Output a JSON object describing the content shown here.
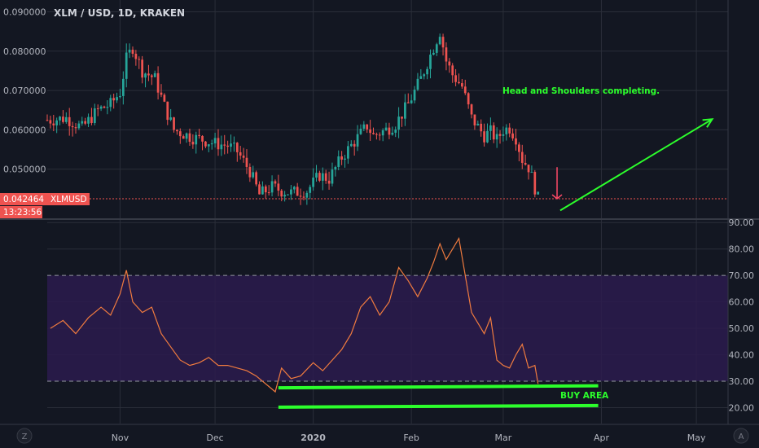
{
  "chart_data": [
    {
      "type": "candlestick",
      "title": "XLM / USD, 1D, KRAKEN",
      "symbol": "XLMUSD",
      "last_price": "0.042464",
      "countdown": "13:23:56",
      "y_ticks": [
        "0.090000",
        "0.080000",
        "0.070000",
        "0.060000",
        "0.050000"
      ],
      "ylim": [
        0.0375,
        0.093
      ],
      "xlim": [
        "2019-10-09",
        "2020-05-11"
      ],
      "annotation": "Head and Shoulders completing.",
      "close_series": {
        "x": [
          "2019-10-10",
          "2019-10-15",
          "2019-10-20",
          "2019-10-25",
          "2019-10-29",
          "2019-11-01",
          "2019-11-03",
          "2019-11-05",
          "2019-11-08",
          "2019-11-12",
          "2019-11-15",
          "2019-11-18",
          "2019-11-21",
          "2019-11-24",
          "2019-11-27",
          "2019-12-01",
          "2019-12-05",
          "2019-12-08",
          "2019-12-12",
          "2019-12-15",
          "2019-12-17",
          "2019-12-19",
          "2019-12-22",
          "2019-12-25",
          "2019-12-30",
          "2020-01-03",
          "2020-01-06",
          "2020-01-10",
          "2020-01-14",
          "2020-01-18",
          "2020-01-20",
          "2020-01-24",
          "2020-01-27",
          "2020-01-31",
          "2020-02-04",
          "2020-02-08",
          "2020-02-10",
          "2020-02-12",
          "2020-02-14",
          "2020-02-17",
          "2020-02-20",
          "2020-02-24",
          "2020-02-26",
          "2020-02-28",
          "2020-03-01",
          "2020-03-03",
          "2020-03-05",
          "2020-03-07",
          "2020-03-09",
          "2020-03-10",
          "2020-03-12"
        ],
        "y": [
          0.0625,
          0.063,
          0.0605,
          0.065,
          0.0665,
          0.0695,
          0.078,
          0.081,
          0.075,
          0.073,
          0.066,
          0.06,
          0.059,
          0.058,
          0.0575,
          0.0565,
          0.056,
          0.0545,
          0.0495,
          0.0435,
          0.0445,
          0.0455,
          0.0445,
          0.044,
          0.0445,
          0.0485,
          0.0475,
          0.053,
          0.057,
          0.061,
          0.0585,
          0.06,
          0.0615,
          0.0665,
          0.073,
          0.081,
          0.085,
          0.0775,
          0.074,
          0.071,
          0.063,
          0.0585,
          0.0595,
          0.0575,
          0.06,
          0.0605,
          0.058,
          0.0525,
          0.0505,
          0.048,
          0.0425
        ]
      },
      "arrows": [
        {
          "type": "down",
          "color": "#ff4a68"
        },
        {
          "type": "up",
          "color": "#2cff2c"
        }
      ]
    },
    {
      "type": "line",
      "indicator": "RSI",
      "y_ticks": [
        "90.00",
        "80.00",
        "70.00",
        "60.00",
        "50.00",
        "40.00",
        "30.00",
        "20.00"
      ],
      "ylim": [
        14,
        91
      ],
      "bands": [
        30,
        70
      ],
      "series": [
        {
          "color": "#f07b3f",
          "x": [
            "2019-10-10",
            "2019-10-14",
            "2019-10-18",
            "2019-10-22",
            "2019-10-26",
            "2019-10-29",
            "2019-11-01",
            "2019-11-03",
            "2019-11-05",
            "2019-11-08",
            "2019-11-11",
            "2019-11-14",
            "2019-11-17",
            "2019-11-20",
            "2019-11-23",
            "2019-11-26",
            "2019-11-29",
            "2019-12-02",
            "2019-12-05",
            "2019-12-08",
            "2019-12-11",
            "2019-12-14",
            "2019-12-16",
            "2019-12-18",
            "2019-12-20",
            "2019-12-22",
            "2019-12-25",
            "2019-12-28",
            "2020-01-01",
            "2020-01-04",
            "2020-01-07",
            "2020-01-10",
            "2020-01-13",
            "2020-01-16",
            "2020-01-19",
            "2020-01-22",
            "2020-01-25",
            "2020-01-28",
            "2020-01-31",
            "2020-02-03",
            "2020-02-06",
            "2020-02-08",
            "2020-02-10",
            "2020-02-12",
            "2020-02-14",
            "2020-02-16",
            "2020-02-18",
            "2020-02-20",
            "2020-02-22",
            "2020-02-24",
            "2020-02-26",
            "2020-02-28",
            "2020-03-01",
            "2020-03-03",
            "2020-03-05",
            "2020-03-07",
            "2020-03-09",
            "2020-03-11",
            "2020-03-12"
          ],
          "y": [
            50,
            53,
            48,
            54,
            58,
            55,
            63,
            72,
            60,
            56,
            58,
            48,
            43,
            38,
            36,
            37,
            39,
            36,
            36,
            35,
            34,
            32,
            30,
            28,
            26,
            35,
            31,
            32,
            37,
            34,
            38,
            42,
            48,
            58,
            62,
            55,
            60,
            73,
            68,
            62,
            69,
            75,
            82,
            76,
            80,
            84,
            70,
            56,
            52,
            48,
            54,
            38,
            36,
            35,
            40,
            44,
            35,
            36,
            29
          ]
        }
      ],
      "annotation": "BUY AREA"
    }
  ],
  "x_ticks": [
    "Nov",
    "Dec",
    "2020",
    "Feb",
    "Mar",
    "Apr",
    "May"
  ],
  "bottom_icons": [
    "zoom-icon",
    "auto-scale-icon"
  ],
  "bottom_labels": {
    "zoom": "Z",
    "auto": "A"
  },
  "colors": {
    "bg": "#131722",
    "up": "#26a69a",
    "down": "#ef5350",
    "grid": "#2a2e39",
    "rsi_band": "#2b1b4e",
    "green_line": "#2cff2c",
    "price_label": "#ef5350"
  }
}
